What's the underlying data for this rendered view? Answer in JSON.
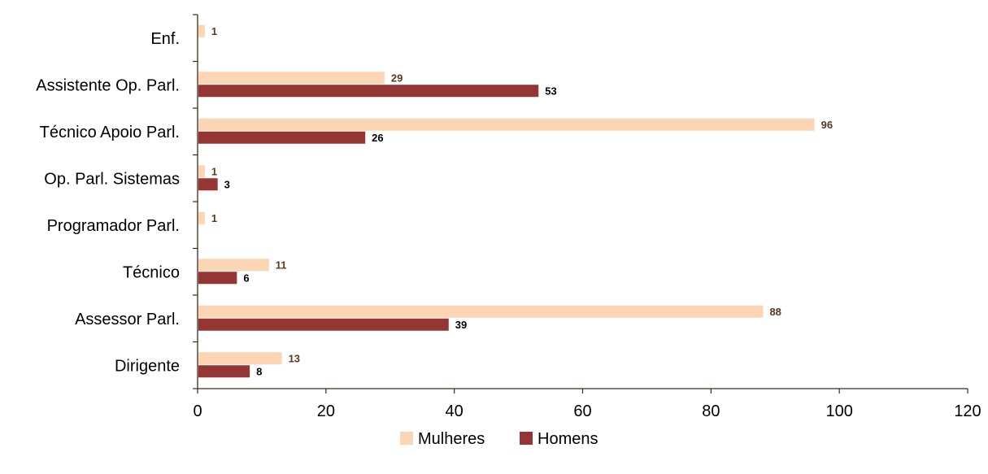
{
  "chart_data": {
    "type": "bar",
    "orientation": "horizontal",
    "categories": [
      "Enf.",
      "Assistente Op. Parl.",
      "Técnico Apoio Parl.",
      "Op. Parl. Sistemas",
      "Programador Parl.",
      "Técnico",
      "Assessor Parl.",
      "Dirigente"
    ],
    "series": [
      {
        "name": "Mulheres",
        "color": "#FCD5B4",
        "label_color": "#5B3A1E",
        "values": [
          1,
          29,
          96,
          1,
          1,
          11,
          88,
          13
        ]
      },
      {
        "name": "Homens",
        "color": "#963634",
        "label_color": "#000000",
        "values": [
          null,
          53,
          26,
          3,
          null,
          6,
          39,
          8
        ]
      }
    ],
    "xlim": [
      0,
      120
    ],
    "xticks": [
      "0",
      "20",
      "40",
      "60",
      "80",
      "100",
      "120"
    ],
    "title": "",
    "xlabel": "",
    "ylabel": "",
    "grid": false,
    "legend_position": "bottom"
  }
}
